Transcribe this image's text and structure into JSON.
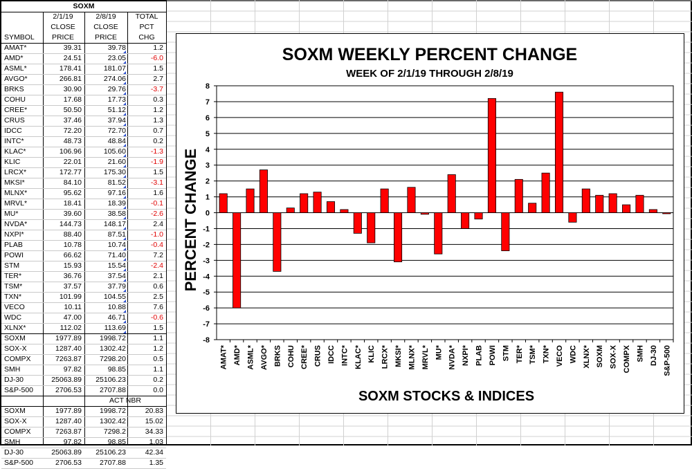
{
  "sheet": {
    "title": "SOXM",
    "header_row1": [
      "",
      "2/1/19",
      "2/8/19",
      "TOTAL"
    ],
    "header_row2": [
      "",
      "CLOSE",
      "CLOSE",
      "PCT"
    ],
    "header_row3": [
      "SYMBOL",
      "PRICE",
      "PRICE",
      "CHG"
    ],
    "stocks": [
      [
        "AMAT*",
        "39.31",
        "39.78",
        "1.2"
      ],
      [
        "AMD*",
        "24.51",
        "23.05",
        "-6.0"
      ],
      [
        "ASML*",
        "178.41",
        "181.07",
        "1.5"
      ],
      [
        "AVGO*",
        "266.81",
        "274.06",
        "2.7"
      ],
      [
        "BRKS",
        "30.90",
        "29.76",
        "-3.7"
      ],
      [
        "COHU",
        "17.68",
        "17.73",
        "0.3"
      ],
      [
        "CREE*",
        "50.50",
        "51.12",
        "1.2"
      ],
      [
        "CRUS",
        "37.46",
        "37.94",
        "1.3"
      ],
      [
        "IDCC",
        "72.20",
        "72.70",
        "0.7"
      ],
      [
        "INTC*",
        "48.73",
        "48.84",
        "0.2"
      ],
      [
        "KLAC*",
        "106.96",
        "105.60",
        "-1.3"
      ],
      [
        "KLIC",
        "22.01",
        "21.60",
        "-1.9"
      ],
      [
        "LRCX*",
        "172.77",
        "175.30",
        "1.5"
      ],
      [
        "MKSI*",
        "84.10",
        "81.52",
        "-3.1"
      ],
      [
        "MLNX*",
        "95.62",
        "97.16",
        "1.6"
      ],
      [
        "MRVL*",
        "18.41",
        "18.39",
        "-0.1"
      ],
      [
        "MU*",
        "39.60",
        "38.58",
        "-2.6"
      ],
      [
        "NVDA*",
        "144.73",
        "148.17",
        "2.4"
      ],
      [
        "NXPI*",
        "88.40",
        "87.51",
        "-1.0"
      ],
      [
        "PLAB",
        "10.78",
        "10.74",
        "-0.4"
      ],
      [
        "POWI",
        "66.62",
        "71.40",
        "7.2"
      ],
      [
        "STM",
        "15.93",
        "15.54",
        "-2.4"
      ],
      [
        "TER*",
        "36.76",
        "37.54",
        "2.1"
      ],
      [
        "TSM*",
        "37.57",
        "37.79",
        "0.6"
      ],
      [
        "TXN*",
        "101.99",
        "104.55",
        "2.5"
      ],
      [
        "VECO",
        "10.11",
        "10.88",
        "7.6"
      ],
      [
        "WDC",
        "47.00",
        "46.71",
        "-0.6"
      ],
      [
        "XLNX*",
        "112.02",
        "113.69",
        "1.5"
      ]
    ],
    "indices": [
      [
        "SOXM",
        "1977.89",
        "1998.72",
        "1.1"
      ],
      [
        "SOX-X",
        "1287.40",
        "1302.42",
        "1.2"
      ],
      [
        "COMPX",
        "7263.87",
        "7298.20",
        "0.5"
      ],
      [
        "SMH",
        "97.82",
        "98.85",
        "1.1"
      ],
      [
        "DJ-30",
        "25063.89",
        "25106.23",
        "0.2"
      ],
      [
        "S&P-500",
        "2706.53",
        "2707.88",
        "0.0"
      ]
    ],
    "act_nbr_label": "ACT NBR",
    "act_nbr": [
      [
        "SOXM",
        "1977.89",
        "1998.72",
        "20.83"
      ],
      [
        "SOX-X",
        "1287.40",
        "1302.42",
        "15.02"
      ],
      [
        "COMPX",
        "7263.87",
        "7298.2",
        "34.33"
      ],
      [
        "SMH",
        "97.82",
        "98.85",
        "1.03"
      ],
      [
        "DJ-30",
        "25063.89",
        "25106.23",
        "42.34"
      ],
      [
        "S&P-500",
        "2706.53",
        "2707.88",
        "1.35"
      ]
    ]
  },
  "chart_data": {
    "type": "bar",
    "title": "SOXM WEEKLY PERCENT CHANGE",
    "subtitle": "WEEK OF 2/1/19 THROUGH 2/8/19",
    "xlabel": "SOXM STOCKS & INDICES",
    "ylabel": "PERCENT CHANGE",
    "ylim": [
      -8,
      8
    ],
    "yticks": [
      "8",
      "7",
      "6",
      "5",
      "4",
      "3",
      "2",
      "1",
      "0",
      "-1",
      "-2",
      "-3",
      "-4",
      "-5",
      "-6",
      "-7",
      "-8"
    ],
    "grid": true,
    "legend": "none",
    "bar_color": "#ff0000",
    "categories": [
      "AMAT*",
      "AMD*",
      "ASML*",
      "AVGO*",
      "BRKS",
      "COHU",
      "CREE*",
      "CRUS",
      "IDCC",
      "INTC*",
      "KLAC*",
      "KLIC",
      "LRCX*",
      "MKSI*",
      "MLNX*",
      "MRVL*",
      "MU*",
      "NVDA*",
      "NXPI*",
      "PLAB",
      "POWI",
      "STM",
      "TER*",
      "TSM*",
      "TXN*",
      "VECO",
      "WDC",
      "XLNX*",
      "SOXM",
      "SOX-X",
      "COMPX",
      "SMH",
      "DJ-30",
      "S&P-500"
    ],
    "values": [
      1.2,
      -6.0,
      1.5,
      2.7,
      -3.7,
      0.3,
      1.2,
      1.3,
      0.7,
      0.2,
      -1.3,
      -1.9,
      1.5,
      -3.1,
      1.6,
      -0.1,
      -2.6,
      2.4,
      -1.0,
      -0.4,
      7.2,
      -2.4,
      2.1,
      0.6,
      2.5,
      7.6,
      -0.6,
      1.5,
      1.1,
      1.2,
      0.5,
      1.1,
      0.2,
      0.0
    ]
  }
}
